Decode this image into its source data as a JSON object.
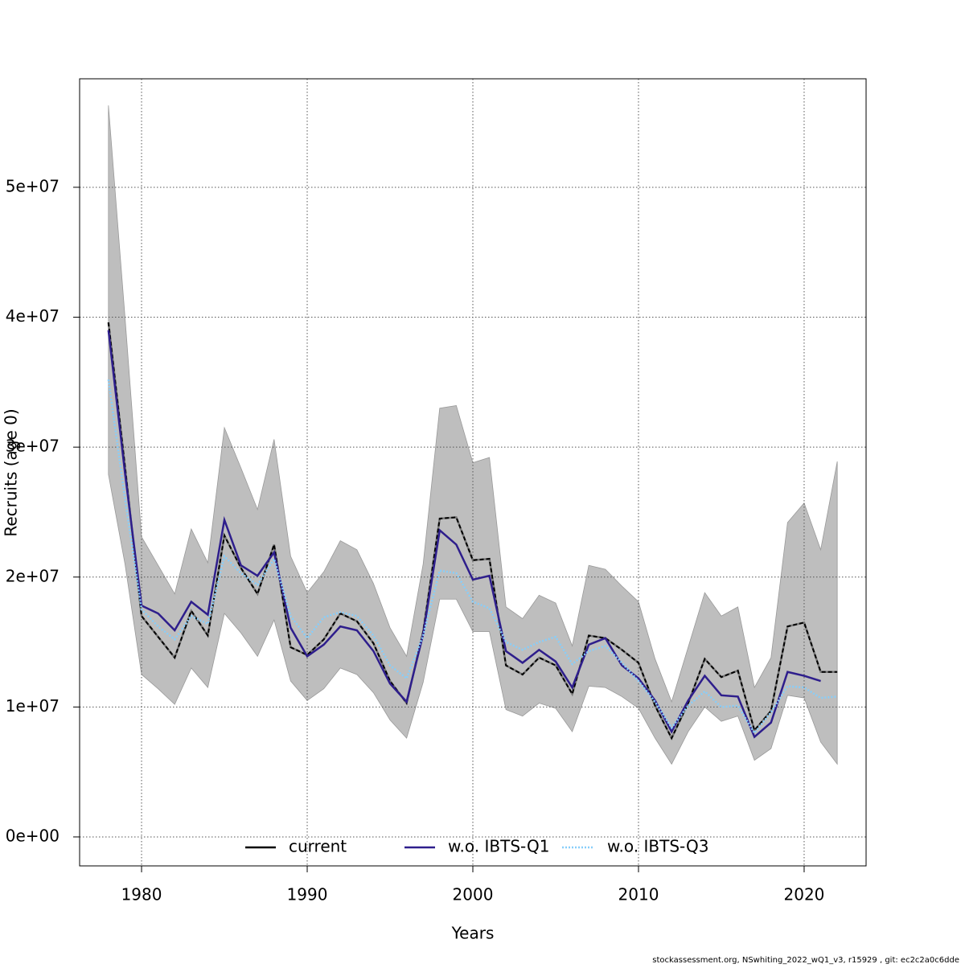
{
  "chart_data": {
    "type": "line",
    "xlabel": "Years",
    "ylabel": "Recruits (age 0)",
    "footer": "stockassessment.org, NSwhiting_2022_wQ1_v3, r15929 , git: ec2c2a0c6dde",
    "x": [
      1978,
      1979,
      1980,
      1981,
      1982,
      1983,
      1984,
      1985,
      1986,
      1987,
      1988,
      1989,
      1990,
      1991,
      1992,
      1993,
      1994,
      1995,
      1996,
      1997,
      1998,
      1999,
      2000,
      2001,
      2002,
      2003,
      2004,
      2005,
      2006,
      2007,
      2008,
      2009,
      2010,
      2011,
      2012,
      2013,
      2014,
      2015,
      2016,
      2017,
      2018,
      2019,
      2020,
      2021,
      2022
    ],
    "band": {
      "color": "#bebebe",
      "upper": [
        56300000.0,
        40000000.0,
        23100000.0,
        20900000.0,
        18700000.0,
        23700000.0,
        21100000.0,
        31500000.0,
        28400000.0,
        25200000.0,
        30600000.0,
        21600000.0,
        18800000.0,
        20400000.0,
        22800000.0,
        22100000.0,
        19500000.0,
        16100000.0,
        13900000.0,
        21000000.0,
        33000000.0,
        33200000.0,
        28800000.0,
        29200000.0,
        17700000.0,
        16800000.0,
        18600000.0,
        18000000.0,
        14700000.0,
        20900000.0,
        20600000.0,
        19300000.0,
        18100000.0,
        13700000.0,
        10400000.0,
        14600000.0,
        18800000.0,
        17000000.0,
        17700000.0,
        11500000.0,
        13800000.0,
        24200000.0,
        25700000.0,
        22100000.0,
        28900000.0
      ],
      "lower": [
        27900000.0,
        21000000.0,
        12500000.0,
        11400000.0,
        10200000.0,
        13000000.0,
        11500000.0,
        17200000.0,
        15700000.0,
        13900000.0,
        16700000.0,
        12000000.0,
        10500000.0,
        11400000.0,
        13000000.0,
        12500000.0,
        11100000.0,
        9000000.0,
        7600000.0,
        11900000.0,
        18300000.0,
        18300000.0,
        15800000.0,
        15800000.0,
        9800000.0,
        9300000.0,
        10300000.0,
        9900000.0,
        8100000.0,
        11600000.0,
        11500000.0,
        10800000.0,
        9900000.0,
        7600000.0,
        5600000.0,
        8100000.0,
        10000000.0,
        8900000.0,
        9300000.0,
        5900000.0,
        6800000.0,
        10900000.0,
        10700000.0,
        7300000.0,
        5600000.0
      ]
    },
    "series": [
      {
        "name": "current",
        "color": "#000000",
        "style": "solid",
        "values": [
          39600000.0,
          28500000.0,
          17000000.0,
          15400000.0,
          13800000.0,
          17400000.0,
          15500000.0,
          23200000.0,
          20700000.0,
          18700000.0,
          22500000.0,
          14600000.0,
          14000000.0,
          15200000.0,
          17200000.0,
          16600000.0,
          14900000.0,
          12000000.0,
          10300000.0,
          15800000.0,
          24500000.0,
          24600000.0,
          21300000.0,
          21400000.0,
          13200000.0,
          12500000.0,
          13800000.0,
          13200000.0,
          11000000.0,
          15500000.0,
          15300000.0,
          14400000.0,
          13400000.0,
          10100000.0,
          7600000.0,
          10300000.0,
          13700000.0,
          12300000.0,
          12800000.0,
          8200000.0,
          9700000.0,
          16200000.0,
          16500000.0,
          12700000.0,
          12700000.0
        ]
      },
      {
        "name": "w.o. IBTS-Q1",
        "color": "#2e1e8c",
        "style": "solid",
        "values": [
          39000000.0,
          28000000.0,
          17800000.0,
          17200000.0,
          15900000.0,
          18100000.0,
          17100000.0,
          24400000.0,
          20900000.0,
          20100000.0,
          21900000.0,
          16100000.0,
          13900000.0,
          14800000.0,
          16200000.0,
          15900000.0,
          14300000.0,
          11800000.0,
          10400000.0,
          15600000.0,
          23600000.0,
          22500000.0,
          19800000.0,
          20100000.0,
          14300000.0,
          13400000.0,
          14400000.0,
          13500000.0,
          11500000.0,
          14800000.0,
          15300000.0,
          13200000.0,
          12200000.0,
          10500000.0,
          8100000.0,
          10500000.0,
          12400000.0,
          10900000.0,
          10800000.0,
          7700000.0,
          8800000.0,
          12700000.0,
          12400000.0,
          12000000.0,
          null
        ]
      },
      {
        "name": "w.o. IBTS-Q3",
        "color": "#87cefa",
        "style": "dotted",
        "values": [
          35200000.0,
          26000000.0,
          17500000.0,
          16200000.0,
          15200000.0,
          17000000.0,
          16400000.0,
          21600000.0,
          20300000.0,
          19400000.0,
          21400000.0,
          17000000.0,
          15300000.0,
          16900000.0,
          17300000.0,
          17000000.0,
          15500000.0,
          13200000.0,
          12200000.0,
          15500000.0,
          20500000.0,
          20300000.0,
          18100000.0,
          17600000.0,
          15000000.0,
          14400000.0,
          15000000.0,
          15400000.0,
          13300000.0,
          14300000.0,
          14700000.0,
          13400000.0,
          12000000.0,
          10400000.0,
          8400000.0,
          10100000.0,
          11200000.0,
          10000000.0,
          10100000.0,
          8000000.0,
          9600000.0,
          11600000.0,
          11500000.0,
          10700000.0,
          10800000.0
        ]
      }
    ],
    "xlim": [
      1976.26,
      2023.74
    ],
    "ylim": [
      -2230000.0,
      58350000.0
    ],
    "xticks": [
      1980,
      1990,
      2000,
      2010,
      2020
    ],
    "yticks": [
      {
        "value": 0,
        "label": "0e+00"
      },
      {
        "value": 10000000,
        "label": "1e+07"
      },
      {
        "value": 20000000,
        "label": "2e+07"
      },
      {
        "value": 30000000,
        "label": "3e+07"
      },
      {
        "value": 40000000,
        "label": "4e+07"
      },
      {
        "value": 50000000,
        "label": "5e+07"
      }
    ],
    "grid": true,
    "legend": "bottom"
  }
}
